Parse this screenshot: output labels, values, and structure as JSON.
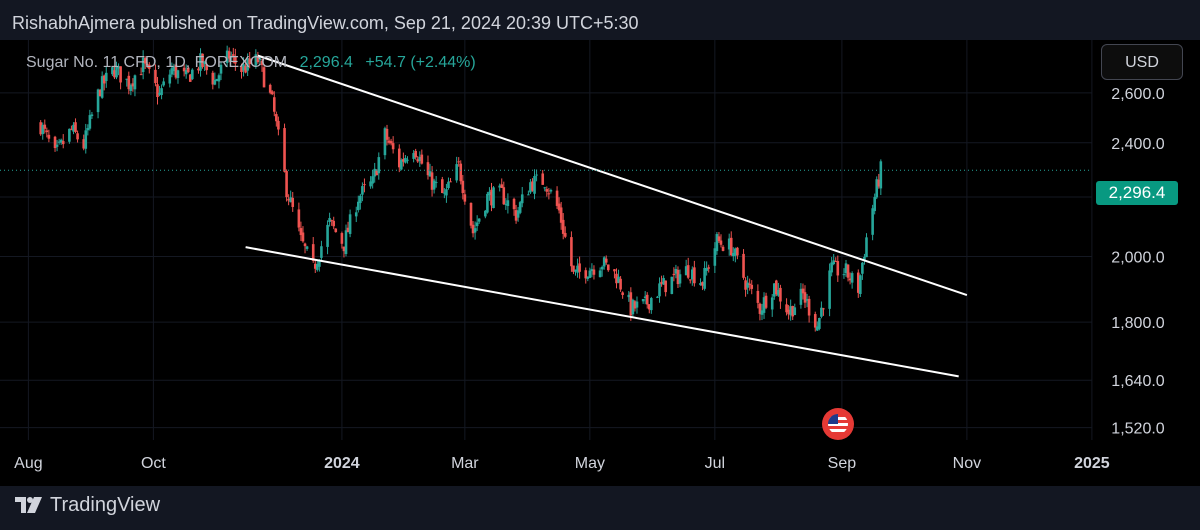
{
  "header": {
    "publisher_line": "RishabhAjmera published on TradingView.com, Sep 21, 2024 20:39 UTC+5:30"
  },
  "legend": {
    "symbol": "Sugar No. 11 CFD, 1D, FOREXCOM",
    "price": "2,296.4",
    "change": "+54.7 (+2.44%)"
  },
  "currency_button": "USD",
  "last_price_badge": "2,296.4",
  "footer": {
    "brand": "TradingView",
    "logo_icon": "tradingview-logo-icon"
  },
  "event_icon": "us-flag-icon",
  "colors": {
    "up": "#26a69a",
    "down": "#ef5350",
    "background": "#000000",
    "grid": "#141822",
    "trendline": "#ffffff",
    "badge": "#089981"
  },
  "chart_data": {
    "type": "candlestick",
    "title": "Sugar No. 11 CFD, 1D, FOREXCOM",
    "xlabel": "",
    "ylabel": "",
    "ylim": [
      1490,
      2830
    ],
    "y_scale": "log",
    "y_ticks": [
      1520.0,
      1640.0,
      1800.0,
      2000.0,
      2200.0,
      2400.0,
      2600.0
    ],
    "y_tick_labels": [
      "1,520.0",
      "1,640.0",
      "1,800.0",
      "2,000.0",
      "2,200.0",
      "2,400.0",
      "2,600.0"
    ],
    "x_ticks": [
      {
        "date": "2023-08-01",
        "label": "Aug",
        "bold": false
      },
      {
        "date": "2023-10-01",
        "label": "Oct",
        "bold": false
      },
      {
        "date": "2024-01-01",
        "label": "2024",
        "bold": true
      },
      {
        "date": "2024-03-01",
        "label": "Mar",
        "bold": false
      },
      {
        "date": "2024-05-01",
        "label": "May",
        "bold": false
      },
      {
        "date": "2024-07-01",
        "label": "Jul",
        "bold": false
      },
      {
        "date": "2024-09-01",
        "label": "Sep",
        "bold": false
      },
      {
        "date": "2024-11-01",
        "label": "Nov",
        "bold": false
      },
      {
        "date": "2025-01-01",
        "label": "2025",
        "bold": true
      }
    ],
    "xlim": [
      "2023-07-24",
      "2025-02-28"
    ],
    "last_price": 2296.4,
    "close_path": [
      [
        "2023-08-07",
        2470
      ],
      [
        "2023-08-14",
        2350
      ],
      [
        "2023-08-22",
        2450
      ],
      [
        "2023-08-28",
        2390
      ],
      [
        "2023-09-05",
        2620
      ],
      [
        "2023-09-12",
        2700
      ],
      [
        "2023-09-19",
        2640
      ],
      [
        "2023-09-26",
        2720
      ],
      [
        "2023-10-04",
        2590
      ],
      [
        "2023-10-10",
        2700
      ],
      [
        "2023-10-17",
        2660
      ],
      [
        "2023-10-24",
        2730
      ],
      [
        "2023-10-31",
        2650
      ],
      [
        "2023-11-07",
        2760
      ],
      [
        "2023-11-13",
        2700
      ],
      [
        "2023-11-21",
        2740
      ],
      [
        "2023-11-28",
        2560
      ],
      [
        "2023-12-05",
        2230
      ],
      [
        "2023-12-12",
        2050
      ],
      [
        "2023-12-18",
        1960
      ],
      [
        "2023-12-26",
        2110
      ],
      [
        "2024-01-02",
        2040
      ],
      [
        "2024-01-09",
        2200
      ],
      [
        "2024-01-16",
        2250
      ],
      [
        "2024-01-22",
        2430
      ],
      [
        "2024-01-29",
        2320
      ],
      [
        "2024-02-05",
        2390
      ],
      [
        "2024-02-12",
        2270
      ],
      [
        "2024-02-20",
        2200
      ],
      [
        "2024-02-27",
        2310
      ],
      [
        "2024-03-05",
        2080
      ],
      [
        "2024-03-12",
        2200
      ],
      [
        "2024-03-19",
        2210
      ],
      [
        "2024-03-26",
        2140
      ],
      [
        "2024-04-02",
        2250
      ],
      [
        "2024-04-09",
        2260
      ],
      [
        "2024-04-16",
        2150
      ],
      [
        "2024-04-23",
        1940
      ],
      [
        "2024-04-30",
        1960
      ],
      [
        "2024-05-07",
        1980
      ],
      [
        "2024-05-14",
        1940
      ],
      [
        "2024-05-21",
        1840
      ],
      [
        "2024-05-28",
        1850
      ],
      [
        "2024-06-04",
        1900
      ],
      [
        "2024-06-11",
        1930
      ],
      [
        "2024-06-18",
        1960
      ],
      [
        "2024-06-25",
        1920
      ],
      [
        "2024-07-02",
        2050
      ],
      [
        "2024-07-09",
        2030
      ],
      [
        "2024-07-16",
        1920
      ],
      [
        "2024-07-23",
        1840
      ],
      [
        "2024-07-30",
        1910
      ],
      [
        "2024-08-06",
        1830
      ],
      [
        "2024-08-13",
        1880
      ],
      [
        "2024-08-20",
        1790
      ],
      [
        "2024-08-27",
        1960
      ],
      [
        "2024-09-03",
        1950
      ],
      [
        "2024-09-09",
        1900
      ],
      [
        "2024-09-13",
        2060
      ],
      [
        "2024-09-17",
        2200
      ],
      [
        "2024-09-20",
        2296.4
      ]
    ],
    "trendlines": [
      {
        "name": "upper",
        "from": [
          "2023-11-21",
          2760
        ],
        "to": [
          "2024-11-01",
          1880
        ]
      },
      {
        "name": "lower",
        "from": [
          "2023-11-15",
          2030
        ],
        "to": [
          "2024-10-28",
          1650
        ]
      }
    ]
  }
}
